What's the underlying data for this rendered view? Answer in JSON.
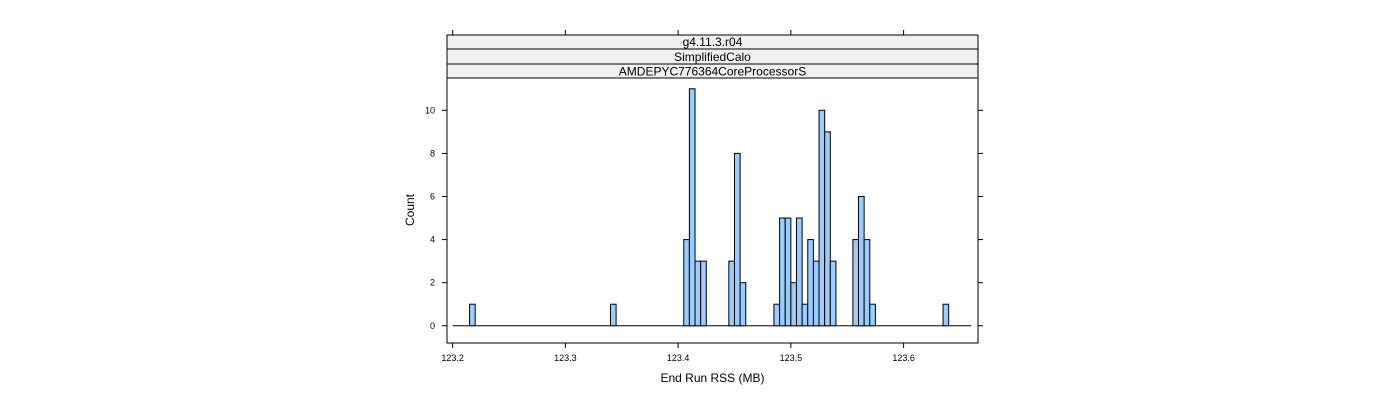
{
  "chart_data": {
    "type": "bar",
    "strips": [
      "g4.11.3.r04",
      "SimplifiedCalo",
      "AMDEPYC776364CoreProcessorS"
    ],
    "xlabel": "End Run RSS (MB)",
    "ylabel": "Count",
    "xlim": [
      123.195,
      123.666
    ],
    "ylim": [
      -0.8,
      11.5
    ],
    "x_ticks": [
      "123.2",
      "123.3",
      "123.4",
      "123.5",
      "123.6"
    ],
    "x_tick_values": [
      123.2,
      123.3,
      123.4,
      123.5,
      123.6
    ],
    "y_ticks": [
      "0",
      "2",
      "4",
      "6",
      "8",
      "10"
    ],
    "y_tick_values": [
      0,
      2,
      4,
      6,
      8,
      10
    ],
    "bin_width": 0.005,
    "range": [
      123.2,
      123.66
    ],
    "bins": [
      {
        "x0": 123.215,
        "count": 1
      },
      {
        "x0": 123.34,
        "count": 1
      },
      {
        "x0": 123.405,
        "count": 4
      },
      {
        "x0": 123.41,
        "count": 11
      },
      {
        "x0": 123.415,
        "count": 3
      },
      {
        "x0": 123.42,
        "count": 3
      },
      {
        "x0": 123.445,
        "count": 3
      },
      {
        "x0": 123.45,
        "count": 8
      },
      {
        "x0": 123.455,
        "count": 2
      },
      {
        "x0": 123.485,
        "count": 1
      },
      {
        "x0": 123.49,
        "count": 5
      },
      {
        "x0": 123.495,
        "count": 5
      },
      {
        "x0": 123.5,
        "count": 2
      },
      {
        "x0": 123.505,
        "count": 5
      },
      {
        "x0": 123.51,
        "count": 1
      },
      {
        "x0": 123.515,
        "count": 4
      },
      {
        "x0": 123.52,
        "count": 3
      },
      {
        "x0": 123.525,
        "count": 10
      },
      {
        "x0": 123.53,
        "count": 9
      },
      {
        "x0": 123.535,
        "count": 3
      },
      {
        "x0": 123.555,
        "count": 4
      },
      {
        "x0": 123.56,
        "count": 6
      },
      {
        "x0": 123.565,
        "count": 4
      },
      {
        "x0": 123.57,
        "count": 1
      },
      {
        "x0": 123.635,
        "count": 1
      }
    ],
    "grid": false,
    "colors": {
      "bar_fill": "#99ccff",
      "bar_stroke": "#000000",
      "strip_fill": "#f0f0f0",
      "frame": "#000000"
    }
  }
}
